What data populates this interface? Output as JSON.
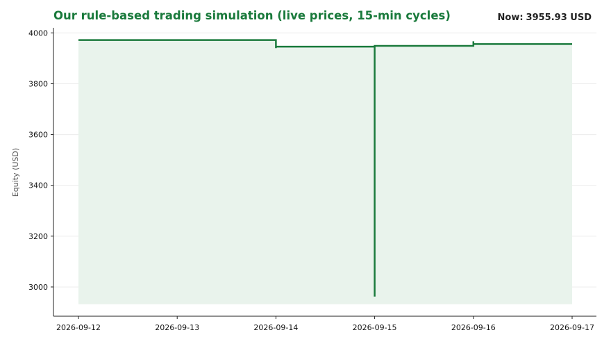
{
  "header": {
    "title": "Our rule-based trading simulation (live prices, 15-min cycles)",
    "now_label": "Now:",
    "now_value": "3955.93 USD"
  },
  "colors": {
    "line": "#1a7a3c",
    "fill": "#e9f3ec",
    "title": "#1a7a3c",
    "grid": "#ececec",
    "axis": "#222222"
  },
  "chart_data": {
    "type": "line",
    "title": "Our rule-based trading simulation (live prices, 15-min cycles)",
    "xlabel": "",
    "ylabel": "Equity (USD)",
    "x_type": "datetime",
    "xlim": [
      "2026-09-12",
      "2026-09-17"
    ],
    "ylim": [
      2885,
      4020
    ],
    "yticks": [
      3000,
      3200,
      3400,
      3600,
      3800,
      4000
    ],
    "xticks": [
      "2026-09-12",
      "2026-09-13",
      "2026-09-14",
      "2026-09-15",
      "2026-09-16",
      "2026-09-17"
    ],
    "grid": true,
    "area_fill": true,
    "area_baseline": 2932,
    "series": [
      {
        "points": [
          {
            "x": "2026-09-12 00:00",
            "y": 3972
          },
          {
            "x": "2026-09-14 00:00",
            "y": 3972
          },
          {
            "x": "2026-09-14 00:00",
            "y": 3940
          },
          {
            "x": "2026-09-14 00:00",
            "y": 3946
          },
          {
            "x": "2026-09-15 00:00",
            "y": 3946
          },
          {
            "x": "2026-09-15 00:00",
            "y": 2962
          },
          {
            "x": "2026-09-15 00:00",
            "y": 3949
          },
          {
            "x": "2026-09-16 00:00",
            "y": 3949
          },
          {
            "x": "2026-09-16 00:00",
            "y": 3967
          },
          {
            "x": "2026-09-16 00:00",
            "y": 3956
          },
          {
            "x": "2026-09-17 00:00",
            "y": 3956
          }
        ]
      }
    ]
  }
}
